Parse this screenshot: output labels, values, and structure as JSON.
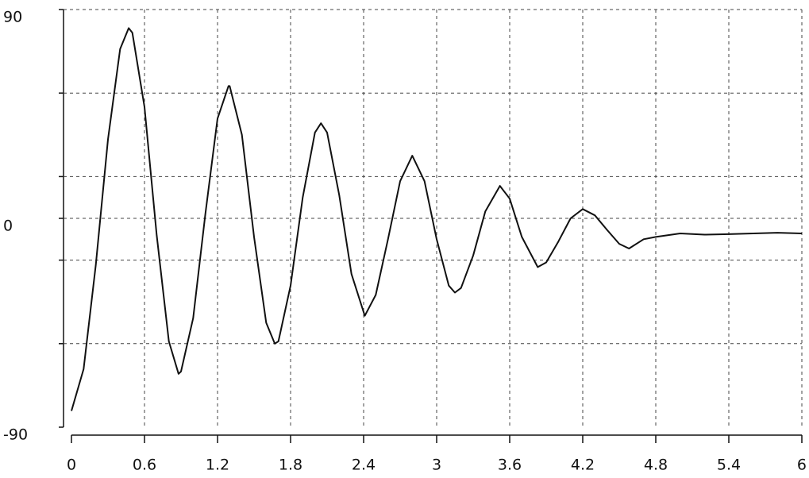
{
  "chart_data": {
    "type": "line",
    "x": [
      0,
      0.1,
      0.2,
      0.3,
      0.4,
      0.47,
      0.5,
      0.6,
      0.7,
      0.8,
      0.88,
      0.9,
      1.0,
      1.1,
      1.2,
      1.29,
      1.3,
      1.4,
      1.5,
      1.6,
      1.67,
      1.7,
      1.8,
      1.9,
      2.0,
      2.05,
      2.1,
      2.2,
      2.3,
      2.41,
      2.5,
      2.6,
      2.7,
      2.8,
      2.9,
      3.0,
      3.1,
      3.15,
      3.2,
      3.3,
      3.4,
      3.52,
      3.6,
      3.7,
      3.83,
      3.9,
      4.0,
      4.1,
      4.2,
      4.3,
      4.4,
      4.5,
      4.58,
      4.7,
      4.8,
      5.0,
      5.2,
      5.4,
      5.6,
      5.8,
      6.0
    ],
    "series": [
      {
        "color": "#111111",
        "values": [
          -83,
          -65,
          -20,
          34,
          73,
          82,
          80,
          48,
          -7,
          -53,
          -67,
          -66,
          -43,
          2,
          43,
          57,
          57,
          36,
          -8,
          -45,
          -54,
          -53,
          -29,
          9,
          37,
          41,
          37,
          10,
          -24,
          -42,
          -33,
          -9,
          16,
          27,
          16,
          -9,
          -29,
          -32,
          -30,
          -16,
          3,
          14,
          8.5,
          -8,
          -21,
          -19,
          -10,
          0,
          4,
          1.3,
          -5,
          -11,
          -13,
          -9,
          -8,
          -6.5,
          -7,
          -6.8,
          -6.5,
          -6.2,
          -6.5
        ]
      }
    ],
    "xlim": [
      0,
      6
    ],
    "xticks": [
      0,
      0.6,
      1.2,
      1.8,
      2.4,
      3,
      3.6,
      4.2,
      4.8,
      5.4,
      6
    ],
    "ylim": [
      -90,
      90
    ],
    "yticks": [
      -90,
      0,
      90
    ],
    "y_grid": [
      -54,
      -18,
      18,
      54
    ],
    "grid": true
  }
}
